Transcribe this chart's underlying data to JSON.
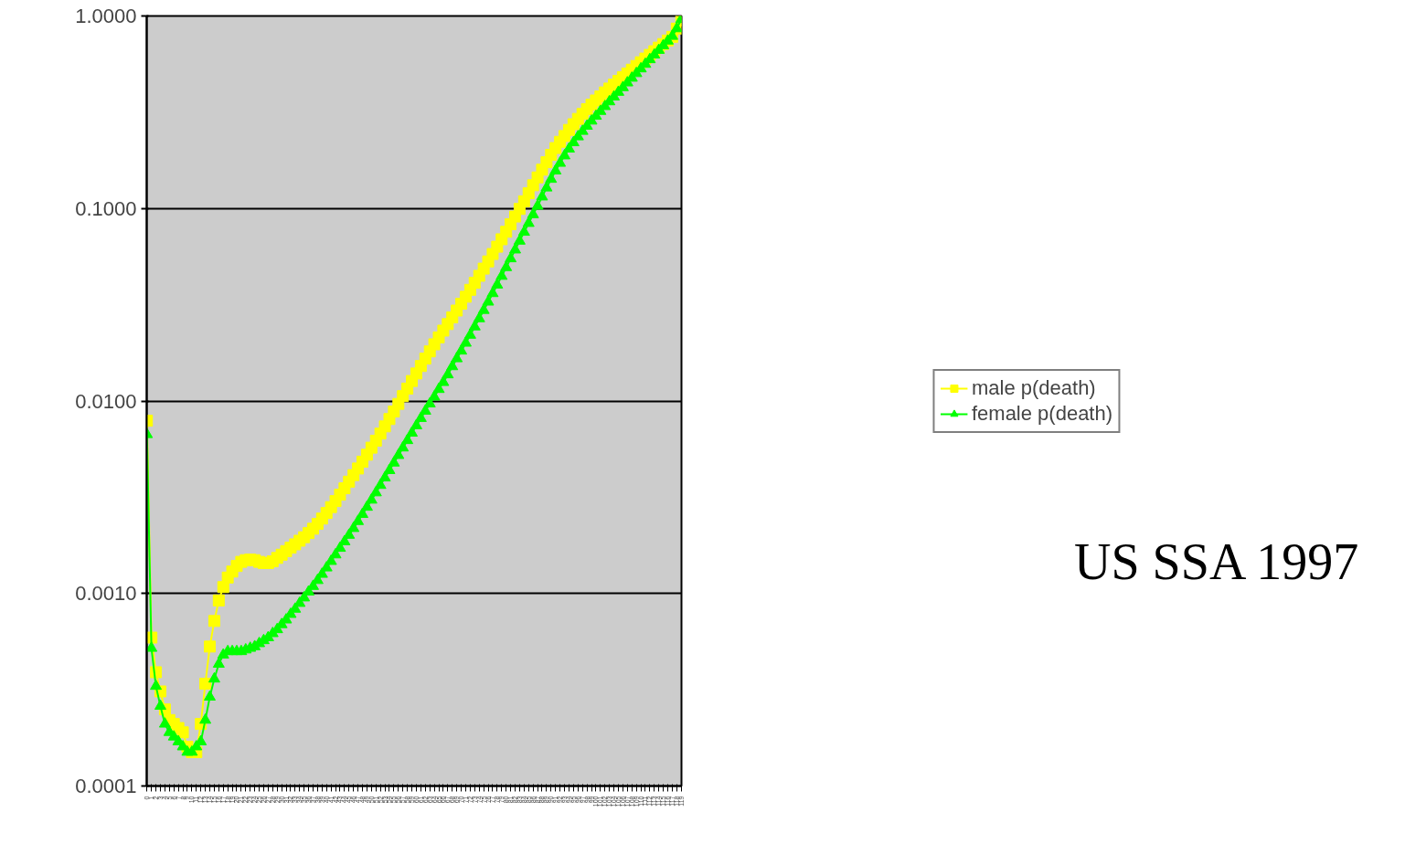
{
  "chart_data": {
    "type": "line",
    "categories": [
      "0",
      "1",
      "2",
      "3",
      "4",
      "5",
      "6",
      "7",
      "8",
      "9",
      "10",
      "11",
      "12",
      "13",
      "14",
      "15",
      "16",
      "17",
      "18",
      "19",
      "20",
      "21",
      "22",
      "23",
      "24",
      "25",
      "26",
      "27",
      "28",
      "29",
      "30",
      "31",
      "32",
      "33",
      "34",
      "35",
      "36",
      "37",
      "38",
      "39",
      "40",
      "41",
      "42",
      "43",
      "44",
      "45",
      "46",
      "47",
      "48",
      "49",
      "50",
      "51",
      "52",
      "53",
      "54",
      "55",
      "56",
      "57",
      "58",
      "59",
      "60",
      "61",
      "62",
      "63",
      "64",
      "65",
      "66",
      "67",
      "68",
      "69",
      "70",
      "71",
      "72",
      "73",
      "74",
      "75",
      "76",
      "77",
      "78",
      "79",
      "80",
      "81",
      "82",
      "83",
      "84",
      "85",
      "86",
      "87",
      "88",
      "89",
      "90",
      "91",
      "92",
      "93",
      "94",
      "95",
      "96",
      "97",
      "98",
      "99",
      "100",
      "101",
      "102",
      "103",
      "104",
      "105",
      "106",
      "107",
      "108",
      "109",
      "110",
      "111",
      "112",
      "113",
      "114",
      "115",
      "116",
      "117",
      "118",
      "119"
    ],
    "log": true,
    "ylim": [
      0.0001,
      1
    ],
    "yticks": [
      {
        "value": 0.0001,
        "label": "0.0001"
      },
      {
        "value": 0.001,
        "label": "0.0010"
      },
      {
        "value": 0.01,
        "label": "0.0100"
      },
      {
        "value": 0.1,
        "label": "0.1000"
      },
      {
        "value": 1,
        "label": "1.0000"
      }
    ],
    "grid": "y",
    "legend": "right",
    "annotations": [
      "US SSA 1997"
    ],
    "series": [
      {
        "name": "male p(death)",
        "color": "#ffff00",
        "marker": "square",
        "values": [
          0.0079,
          0.00059,
          0.00039,
          0.00031,
          0.00025,
          0.00022,
          0.00021,
          0.0002,
          0.00019,
          0.00016,
          0.00015,
          0.00015,
          0.00021,
          0.00034,
          0.00053,
          0.00072,
          0.00092,
          0.00108,
          0.00121,
          0.0013,
          0.00139,
          0.00146,
          0.00149,
          0.0015,
          0.00149,
          0.00146,
          0.00144,
          0.00144,
          0.00147,
          0.00153,
          0.00159,
          0.00166,
          0.00173,
          0.0018,
          0.00188,
          0.00196,
          0.00206,
          0.00217,
          0.0023,
          0.00245,
          0.00262,
          0.00281,
          0.00302,
          0.00326,
          0.00352,
          0.00381,
          0.00412,
          0.00446,
          0.00484,
          0.00526,
          0.00572,
          0.00622,
          0.00677,
          0.00738,
          0.00806,
          0.00882,
          0.00966,
          0.0106,
          0.0116,
          0.0127,
          0.0139,
          0.0152,
          0.0166,
          0.0181,
          0.0197,
          0.0214,
          0.0232,
          0.0251,
          0.0272,
          0.0295,
          0.032,
          0.0348,
          0.0378,
          0.0411,
          0.0447,
          0.0487,
          0.0531,
          0.058,
          0.0633,
          0.0692,
          0.0757,
          0.0829,
          0.0908,
          0.0995,
          0.109,
          0.12,
          0.132,
          0.145,
          0.159,
          0.174,
          0.19,
          0.206,
          0.222,
          0.238,
          0.256,
          0.274,
          0.292,
          0.31,
          0.328,
          0.346,
          0.364,
          0.382,
          0.401,
          0.42,
          0.44,
          0.46,
          0.481,
          0.503,
          0.526,
          0.55,
          0.575,
          0.601,
          0.628,
          0.656,
          0.685,
          0.715,
          0.746,
          0.779,
          0.86,
          0.95
        ]
      },
      {
        "name": "female p(death)",
        "color": "#00ff00",
        "marker": "triangle",
        "values": [
          0.0067,
          0.00052,
          0.00033,
          0.00026,
          0.00021,
          0.00019,
          0.00018,
          0.00017,
          0.00016,
          0.00015,
          0.00015,
          0.00016,
          0.00017,
          0.00022,
          0.00029,
          0.00036,
          0.00043,
          0.00048,
          0.0005,
          0.0005,
          0.0005,
          0.0005,
          0.00051,
          0.00052,
          0.00053,
          0.00055,
          0.00057,
          0.00059,
          0.00062,
          0.00065,
          0.00069,
          0.00073,
          0.00078,
          0.00083,
          0.00089,
          0.00095,
          0.00102,
          0.00109,
          0.00117,
          0.00126,
          0.00136,
          0.00147,
          0.00159,
          0.00172,
          0.00186,
          0.00201,
          0.00218,
          0.00237,
          0.00258,
          0.00281,
          0.00306,
          0.00334,
          0.00365,
          0.00399,
          0.00436,
          0.00477,
          0.00522,
          0.00571,
          0.00624,
          0.00682,
          0.00745,
          0.00813,
          0.00887,
          0.00967,
          0.0105,
          0.0115,
          0.0125,
          0.0137,
          0.0151,
          0.0166,
          0.0182,
          0.02,
          0.022,
          0.0243,
          0.0268,
          0.0296,
          0.0327,
          0.0362,
          0.0401,
          0.0445,
          0.0494,
          0.0549,
          0.061,
          0.0678,
          0.0754,
          0.0838,
          0.093,
          0.103,
          0.115,
          0.128,
          0.142,
          0.157,
          0.172,
          0.188,
          0.204,
          0.22,
          0.236,
          0.252,
          0.268,
          0.285,
          0.302,
          0.32,
          0.339,
          0.359,
          0.38,
          0.402,
          0.425,
          0.45,
          0.476,
          0.503,
          0.532,
          0.562,
          0.594,
          0.628,
          0.664,
          0.702,
          0.742,
          0.785,
          0.86,
          0.96
        ]
      }
    ]
  }
}
